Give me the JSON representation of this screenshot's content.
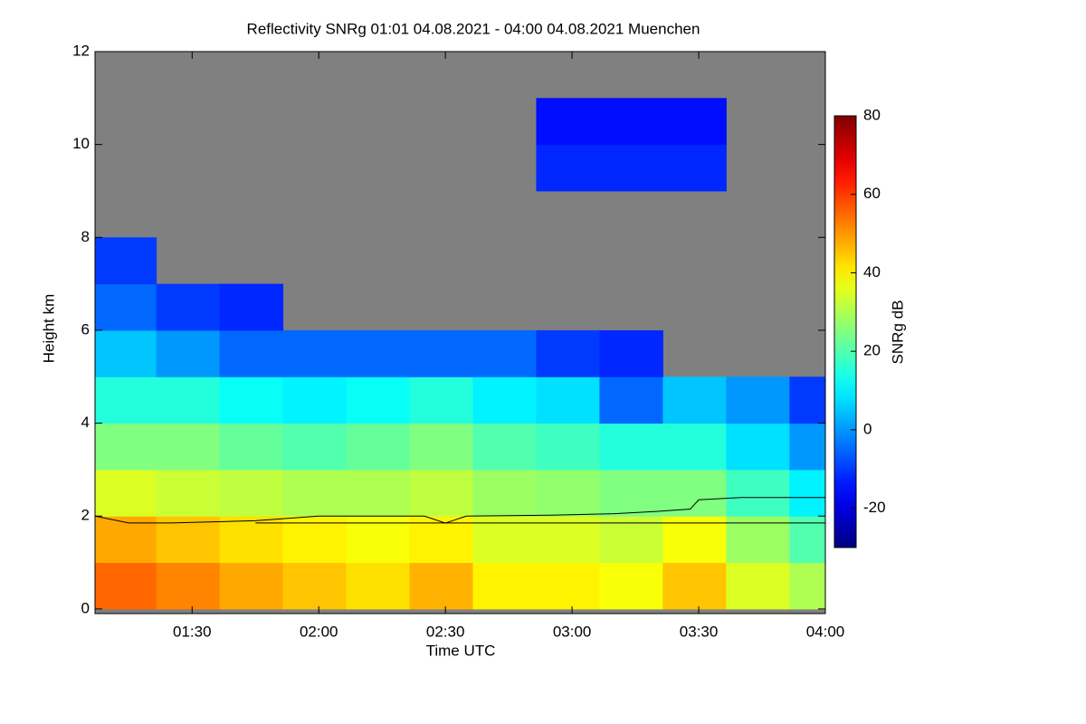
{
  "chart_data": {
    "type": "heatmap",
    "title": "Reflectivity SNRg   01:01 04.08.2021 - 04:00 04.08.2021 Muenchen",
    "x_label": "Time UTC",
    "y_label": "Height km",
    "colorbar_label": "SNRg dB",
    "colormap": "jet",
    "missing_color": "#808080",
    "x": [
      74,
      89,
      104,
      119,
      134,
      149,
      164,
      179,
      194,
      209,
      224,
      239
    ],
    "y": [
      0.5,
      1.5,
      2.5,
      3.5,
      4.5,
      5.5,
      6.5,
      7.5,
      8.5,
      9.5,
      10.5,
      11.5
    ],
    "z": [
      [
        55,
        52,
        48,
        45,
        42,
        47,
        40,
        40,
        38,
        45,
        35,
        30
      ],
      [
        48,
        45,
        42,
        40,
        38,
        40,
        35,
        35,
        33,
        38,
        28,
        20
      ],
      [
        35,
        33,
        32,
        30,
        30,
        32,
        28,
        27,
        25,
        25,
        18,
        10
      ],
      [
        25,
        25,
        22,
        20,
        22,
        25,
        20,
        18,
        15,
        15,
        8,
        0
      ],
      [
        15,
        15,
        12,
        10,
        12,
        15,
        10,
        8,
        -5,
        5,
        0,
        -10
      ],
      [
        5,
        0,
        -5,
        -5,
        -5,
        -5,
        -5,
        -10,
        -12,
        null,
        null,
        null
      ],
      [
        -5,
        -10,
        -12,
        null,
        null,
        null,
        null,
        null,
        null,
        null,
        null,
        null
      ],
      [
        -10,
        null,
        null,
        null,
        null,
        null,
        null,
        null,
        null,
        null,
        null,
        null
      ],
      [
        null,
        null,
        null,
        null,
        null,
        null,
        null,
        null,
        null,
        null,
        null,
        null
      ],
      [
        null,
        null,
        null,
        null,
        null,
        null,
        null,
        -12,
        -12,
        -12,
        null,
        null
      ],
      [
        null,
        null,
        null,
        null,
        null,
        null,
        null,
        -15,
        -15,
        -15,
        null,
        null
      ],
      [
        null,
        null,
        null,
        null,
        null,
        null,
        null,
        null,
        null,
        null,
        null,
        null
      ]
    ],
    "lines": [
      {
        "color": "#000000",
        "x": [
          67,
          75,
          85,
          105,
          120,
          145,
          150,
          155,
          175,
          190,
          200,
          208,
          210,
          220,
          240
        ],
        "values": [
          2.0,
          1.85,
          1.85,
          1.9,
          2.0,
          2.0,
          1.85,
          2.0,
          2.02,
          2.05,
          2.1,
          2.15,
          2.35,
          2.4,
          2.4
        ]
      },
      {
        "color": "#000000",
        "x": [
          105,
          240
        ],
        "values": [
          1.85,
          1.85
        ]
      }
    ],
    "xlim": [
      67,
      240
    ],
    "xticks": [
      {
        "value": 90,
        "label": "01:30"
      },
      {
        "value": 120,
        "label": "02:00"
      },
      {
        "value": 150,
        "label": "02:30"
      },
      {
        "value": 180,
        "label": "03:00"
      },
      {
        "value": 210,
        "label": "03:30"
      },
      {
        "value": 240,
        "label": "04:00"
      }
    ],
    "ylim": [
      -0.1,
      12
    ],
    "yticks": [
      0,
      2,
      4,
      6,
      8,
      10,
      12
    ],
    "clim": [
      -30,
      80
    ],
    "cticks": [
      -20,
      0,
      20,
      40,
      60,
      80
    ]
  }
}
